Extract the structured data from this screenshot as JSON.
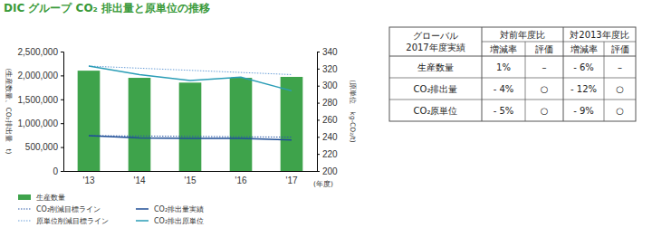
{
  "chart_data": {
    "type": "bar",
    "title": "DIC グループ CO₂ 排出量と原単位の推移",
    "xlabel": "(年度)",
    "ylabel": "(生産数量、CO₂排出量　t)",
    "y2label": "(原単位　kg-CO₂/t)",
    "categories": [
      "'13",
      "'14",
      "'15",
      "'16",
      "'17"
    ],
    "ylim": [
      0,
      2500000
    ],
    "yticks": [
      0,
      {
        "value": 500000,
        "label": "500,000"
      },
      {
        "value": 1000000,
        "label": "1,000,000"
      },
      {
        "value": 1500000,
        "label": "1,500,000"
      },
      {
        "value": 2000000,
        "label": "2,000,000"
      },
      {
        "value": 2500000,
        "label": "2,500,000"
      }
    ],
    "y2lim": [
      200,
      340
    ],
    "y2ticks": [
      200,
      220,
      240,
      260,
      280,
      300,
      320,
      340
    ],
    "grid": false,
    "series": [
      {
        "name": "生産数量",
        "type": "bar",
        "color": "#3ea34b",
        "values": [
          2100000,
          1950000,
          1850000,
          1950000,
          1970000
        ]
      },
      {
        "name": "CO₂削減目標ライン",
        "type": "line",
        "line_style": "dotted",
        "color": "#2c5aa8",
        "values": [
          740000,
          732000,
          724000,
          716000,
          708000
        ]
      },
      {
        "name": "CO₂排出量実績",
        "type": "line",
        "line_style": "solid",
        "color": "#1f4e96",
        "values": [
          740000,
          690000,
          680000,
          680000,
          650000
        ]
      },
      {
        "name": "原単位削減目標ライン",
        "type": "line",
        "line_style": "dotted",
        "color": "#6a9fd8",
        "axis": "y2",
        "values": [
          323,
          320.5,
          318,
          315.5,
          313
        ]
      },
      {
        "name": "CO₂排出原単位",
        "type": "line",
        "line_style": "solid",
        "color": "#2a9db6",
        "axis": "y2",
        "values": [
          323,
          313,
          306,
          310,
          294
        ]
      }
    ]
  },
  "table": {
    "corner": [
      "グローバル",
      "2017年度実績"
    ],
    "groups": [
      "対前年度比",
      "対2013年度比"
    ],
    "subheaders": [
      "増減率",
      "評価",
      "増減率",
      "評価"
    ],
    "rows": [
      [
        "生産数量",
        "1%",
        "–",
        "- 6%",
        "–"
      ],
      [
        "CO₂排出量",
        "- 4%",
        "○",
        "- 12%",
        "○"
      ],
      [
        "CO₂原単位",
        "- 5%",
        "○",
        "- 9%",
        "○"
      ]
    ]
  }
}
